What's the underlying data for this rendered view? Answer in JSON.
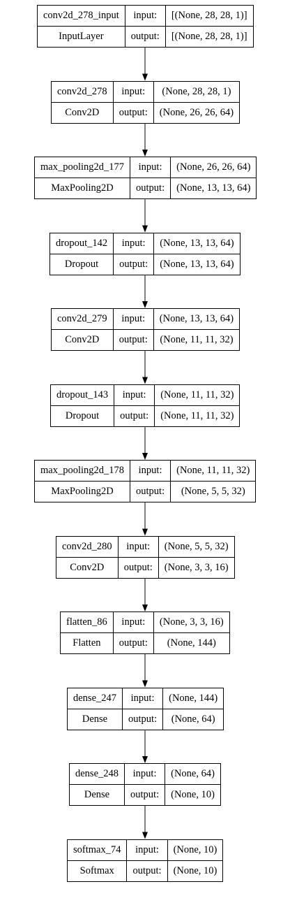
{
  "layers": [
    {
      "name": "conv2d_278_input",
      "type": "InputLayer",
      "input_label": "input:",
      "output_label": "output:",
      "input_shape": "[(None, 28, 28, 1)]",
      "output_shape": "[(None, 28, 28, 1)]"
    },
    {
      "name": "conv2d_278",
      "type": "Conv2D",
      "input_label": "input:",
      "output_label": "output:",
      "input_shape": "(None, 28, 28, 1)",
      "output_shape": "(None, 26, 26, 64)"
    },
    {
      "name": "max_pooling2d_177",
      "type": "MaxPooling2D",
      "input_label": "input:",
      "output_label": "output:",
      "input_shape": "(None, 26, 26, 64)",
      "output_shape": "(None, 13, 13, 64)"
    },
    {
      "name": "dropout_142",
      "type": "Dropout",
      "input_label": "input:",
      "output_label": "output:",
      "input_shape": "(None, 13, 13, 64)",
      "output_shape": "(None, 13, 13, 64)"
    },
    {
      "name": "conv2d_279",
      "type": "Conv2D",
      "input_label": "input:",
      "output_label": "output:",
      "input_shape": "(None, 13, 13, 64)",
      "output_shape": "(None, 11, 11, 32)"
    },
    {
      "name": "dropout_143",
      "type": "Dropout",
      "input_label": "input:",
      "output_label": "output:",
      "input_shape": "(None, 11, 11, 32)",
      "output_shape": "(None, 11, 11, 32)"
    },
    {
      "name": "max_pooling2d_178",
      "type": "MaxPooling2D",
      "input_label": "input:",
      "output_label": "output:",
      "input_shape": "(None, 11, 11, 32)",
      "output_shape": "(None, 5, 5, 32)"
    },
    {
      "name": "conv2d_280",
      "type": "Conv2D",
      "input_label": "input:",
      "output_label": "output:",
      "input_shape": "(None, 5, 5, 32)",
      "output_shape": "(None, 3, 3, 16)"
    },
    {
      "name": "flatten_86",
      "type": "Flatten",
      "input_label": "input:",
      "output_label": "output:",
      "input_shape": "(None, 3, 3, 16)",
      "output_shape": "(None, 144)"
    },
    {
      "name": "dense_247",
      "type": "Dense",
      "input_label": "input:",
      "output_label": "output:",
      "input_shape": "(None, 144)",
      "output_shape": "(None, 64)"
    },
    {
      "name": "dense_248",
      "type": "Dense",
      "input_label": "input:",
      "output_label": "output:",
      "input_shape": "(None, 64)",
      "output_shape": "(None, 10)"
    },
    {
      "name": "softmax_74",
      "type": "Softmax",
      "input_label": "input:",
      "output_label": "output:",
      "input_shape": "(None, 10)",
      "output_shape": "(None, 10)"
    }
  ]
}
